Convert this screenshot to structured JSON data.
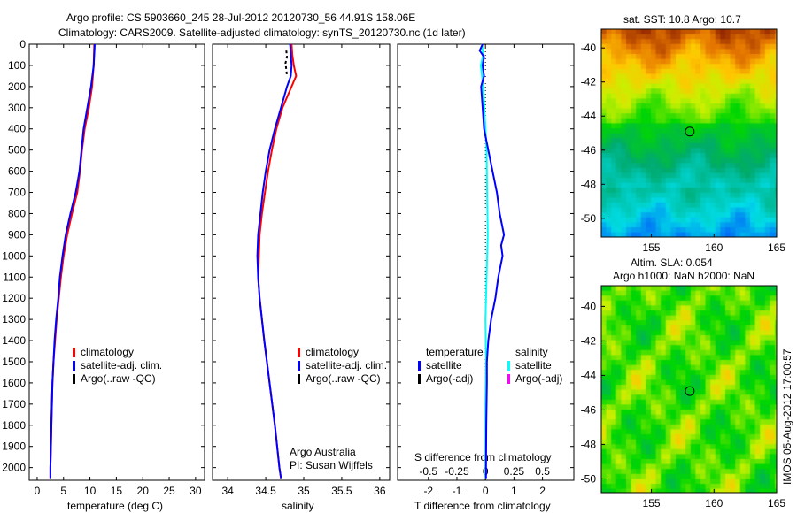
{
  "title_lines": [
    "Argo profile: CS 5903660_245 28-Jul-2012 20120730_56 44.91S 158.06E",
    "Climatology: CARS2009. Satellite-adjusted climatology: synTS_20120730.nc (1d later)"
  ],
  "colors": {
    "climatology": "#ff0000",
    "satellite": "#0000ff",
    "argo": "#000000",
    "sal_satellite": "#00ffff",
    "sal_argo": "#ff00ff"
  },
  "chart_data": [
    {
      "type": "line",
      "name": "temperature",
      "xlabel": "temperature (deg C)",
      "ylabel": "",
      "xlim": [
        -1.5,
        31.7
      ],
      "ylim": [
        0,
        2060
      ],
      "y_reversed": true,
      "xticks": [
        0,
        5,
        10,
        15,
        20,
        25,
        30
      ],
      "yticks": [
        0,
        100,
        200,
        300,
        400,
        500,
        600,
        700,
        800,
        900,
        1000,
        1100,
        1200,
        1300,
        1400,
        1500,
        1600,
        1700,
        1800,
        1900,
        2000
      ],
      "legend": [
        "climatology",
        "satellite-adj. clim.",
        "Argo(..raw -QC)"
      ],
      "series": [
        {
          "name": "climatology",
          "depth": [
            0,
            100,
            200,
            300,
            400,
            500,
            600,
            700,
            800,
            900,
            1000,
            1100,
            1200,
            1300,
            1400,
            1500,
            1600,
            1700,
            1800,
            1900,
            2000,
            2050
          ],
          "values": [
            10.8,
            10.7,
            10.4,
            9.8,
            9.0,
            8.5,
            8.1,
            7.6,
            6.6,
            5.7,
            5.0,
            4.5,
            4.1,
            3.7,
            3.4,
            3.1,
            2.9,
            2.8,
            2.7,
            2.6,
            2.5,
            2.5
          ]
        },
        {
          "name": "satellite-adj. clim.",
          "depth": [
            0,
            100,
            200,
            300,
            400,
            500,
            600,
            700,
            800,
            900,
            1000,
            1100,
            1200,
            1300,
            1400,
            1500,
            1600,
            1700,
            1800,
            1900,
            2000,
            2050
          ],
          "values": [
            10.9,
            10.7,
            10.2,
            9.5,
            8.8,
            8.4,
            8.0,
            7.3,
            6.3,
            5.4,
            4.8,
            4.3,
            4.0,
            3.6,
            3.3,
            3.1,
            2.9,
            2.8,
            2.7,
            2.6,
            2.5,
            2.5
          ]
        }
      ]
    },
    {
      "type": "line",
      "name": "salinity",
      "xlabel": "salinity",
      "xlim": [
        33.8,
        36.13
      ],
      "ylim": [
        0,
        2060
      ],
      "y_reversed": true,
      "xticks": [
        34,
        34.5,
        35,
        35.5,
        36
      ],
      "legend": [
        "climatology",
        "satellite-adj. clim.",
        "Argo(..raw -QC)"
      ],
      "annotation": [
        "Argo Australia",
        "PI: Susan Wijffels"
      ],
      "series": [
        {
          "name": "climatology",
          "depth": [
            0,
            50,
            100,
            150,
            200,
            300,
            400,
            500,
            600,
            700,
            800,
            900,
            1000,
            1100,
            1200,
            1400,
            1600,
            1800,
            2000,
            2050
          ],
          "values": [
            34.84,
            34.85,
            34.87,
            34.9,
            34.84,
            34.72,
            34.64,
            34.58,
            34.53,
            34.49,
            34.45,
            34.42,
            34.41,
            34.4,
            34.42,
            34.48,
            34.55,
            34.62,
            34.68,
            34.7
          ]
        },
        {
          "name": "satellite-adj. clim.",
          "depth": [
            0,
            50,
            100,
            150,
            200,
            300,
            400,
            500,
            600,
            700,
            800,
            900,
            1000,
            1100,
            1200,
            1400,
            1600,
            1800,
            2000,
            2050
          ],
          "values": [
            34.82,
            34.83,
            34.84,
            34.83,
            34.78,
            34.7,
            34.62,
            34.55,
            34.5,
            34.46,
            34.43,
            34.4,
            34.39,
            34.4,
            34.42,
            34.48,
            34.55,
            34.62,
            34.68,
            34.7
          ]
        },
        {
          "name": "Argo(..raw -QC)",
          "depth": [
            30,
            60,
            90,
            120,
            150
          ],
          "values": [
            34.77,
            34.78,
            34.76,
            34.77,
            34.78
          ]
        }
      ]
    },
    {
      "type": "line",
      "name": "difference",
      "xlabel": "T difference from climatology",
      "x2label": "S difference from climatology",
      "xlim": [
        -3.08,
        3.1
      ],
      "ylim": [
        0,
        2060
      ],
      "y_reversed": true,
      "xticks": [
        -2,
        -1,
        0,
        1,
        2
      ],
      "x2ticks": [
        -0.5,
        -0.25,
        0,
        0.25,
        0.5
      ],
      "legend_groups": [
        {
          "title": "temperature",
          "items": [
            "satellite",
            "Argo(-adj)"
          ]
        },
        {
          "title": "salinity",
          "items": [
            "satellite",
            "Argo(-adj)"
          ]
        }
      ],
      "series": [
        {
          "name": "temperature satellite",
          "depth": [
            0,
            30,
            60,
            100,
            150,
            200,
            300,
            400,
            500,
            600,
            700,
            800,
            900,
            950,
            1000,
            1100,
            1200,
            1300,
            1400,
            1500,
            1600,
            1800,
            2000,
            2050
          ],
          "values": [
            -0.1,
            -0.2,
            -0.05,
            -0.1,
            -0.05,
            -0.15,
            -0.1,
            -0.05,
            0.1,
            0.25,
            0.4,
            0.5,
            0.65,
            0.55,
            0.6,
            0.45,
            0.35,
            0.2,
            0.1,
            0.05,
            0.05,
            0.03,
            0.02,
            0.02
          ]
        },
        {
          "name": "salinity satellite",
          "depth": [
            0,
            50,
            100,
            200,
            300,
            400,
            500,
            700,
            900,
            1100,
            1300,
            1500,
            1700,
            2000,
            2050
          ],
          "values": [
            -0.03,
            -0.02,
            -0.04,
            -0.02,
            -0.01,
            0.0,
            0.01,
            0.015,
            0.02,
            0.01,
            0.0,
            0.005,
            0.0,
            0.0,
            0.0
          ]
        }
      ]
    },
    {
      "type": "heatmap",
      "name": "sst-map",
      "title": "sat. SST: 10.8  Argo: 10.7",
      "xlim": [
        151,
        165
      ],
      "ylim": [
        -51.1,
        -38.9
      ],
      "xticks": [
        155,
        160,
        165
      ],
      "yticks": [
        -40,
        -42,
        -44,
        -46,
        -48,
        -50
      ],
      "marker": [
        158.06,
        -44.91
      ]
    },
    {
      "type": "heatmap",
      "name": "sla-map",
      "title": [
        "Altim. SLA: 0.054",
        "Argo h1000: NaN h2000: NaN"
      ],
      "xlim": [
        151,
        165
      ],
      "ylim": [
        -50.8,
        -38.8
      ],
      "xticks": [
        155,
        160,
        165
      ],
      "yticks": [
        -40,
        -42,
        -44,
        -46,
        -48,
        -50
      ],
      "marker": [
        158.06,
        -44.91
      ]
    }
  ],
  "side_label": "IMOS 05-Aug-2012 17:00:57"
}
